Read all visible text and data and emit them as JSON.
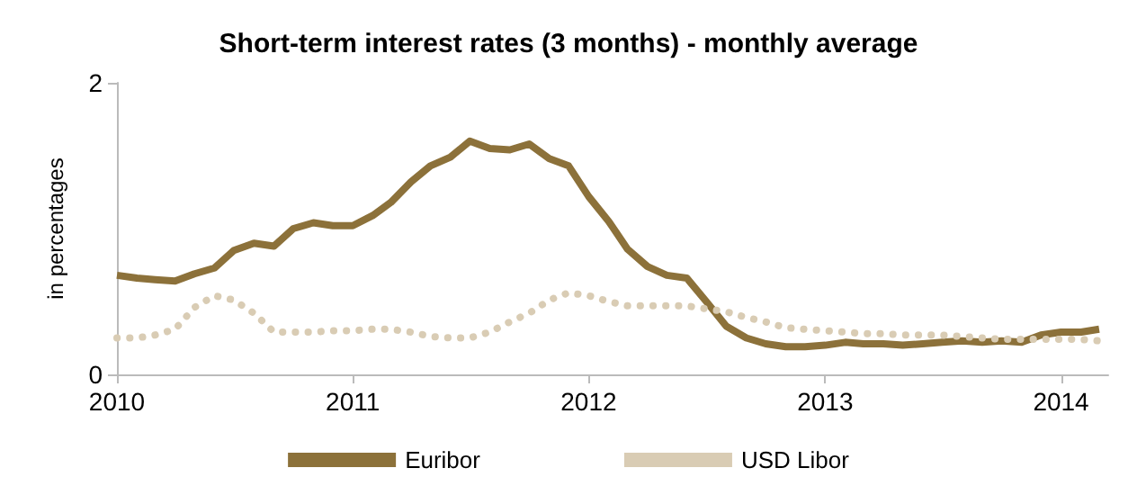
{
  "chart_data": {
    "type": "line",
    "title": "Short-term interest rates (3 months) - monthly average",
    "ylabel": "in percentages",
    "x": [
      "2010-01",
      "2010-02",
      "2010-03",
      "2010-04",
      "2010-05",
      "2010-06",
      "2010-07",
      "2010-08",
      "2010-09",
      "2010-10",
      "2010-11",
      "2010-12",
      "2011-01",
      "2011-02",
      "2011-03",
      "2011-04",
      "2011-05",
      "2011-06",
      "2011-07",
      "2011-08",
      "2011-09",
      "2011-10",
      "2011-11",
      "2011-12",
      "2012-01",
      "2012-02",
      "2012-03",
      "2012-04",
      "2012-05",
      "2012-06",
      "2012-07",
      "2012-08",
      "2012-09",
      "2012-10",
      "2012-11",
      "2012-12",
      "2013-01",
      "2013-02",
      "2013-03",
      "2013-04",
      "2013-05",
      "2013-06",
      "2013-07",
      "2013-08",
      "2013-09",
      "2013-10",
      "2013-11",
      "2013-12",
      "2014-01",
      "2014-02",
      "2014-03"
    ],
    "series": [
      {
        "name": "Euribor",
        "color": "#8c713a",
        "line_style": "solid",
        "values": [
          0.68,
          0.66,
          0.65,
          0.64,
          0.69,
          0.73,
          0.85,
          0.9,
          0.88,
          1.0,
          1.04,
          1.02,
          1.02,
          1.09,
          1.18,
          1.32,
          1.43,
          1.49,
          1.6,
          1.55,
          1.54,
          1.58,
          1.48,
          1.43,
          1.22,
          1.05,
          0.86,
          0.74,
          0.68,
          0.66,
          0.5,
          0.33,
          0.25,
          0.21,
          0.19,
          0.19,
          0.2,
          0.22,
          0.21,
          0.21,
          0.2,
          0.21,
          0.22,
          0.23,
          0.22,
          0.23,
          0.22,
          0.27,
          0.29,
          0.29,
          0.31
        ]
      },
      {
        "name": "USD Libor",
        "color": "#d9ccb4",
        "line_style": "dotted",
        "values": [
          0.25,
          0.25,
          0.27,
          0.31,
          0.46,
          0.54,
          0.51,
          0.42,
          0.29,
          0.29,
          0.29,
          0.3,
          0.3,
          0.31,
          0.31,
          0.29,
          0.26,
          0.25,
          0.25,
          0.29,
          0.36,
          0.42,
          0.51,
          0.56,
          0.54,
          0.5,
          0.47,
          0.47,
          0.47,
          0.47,
          0.45,
          0.43,
          0.39,
          0.36,
          0.32,
          0.31,
          0.3,
          0.29,
          0.28,
          0.28,
          0.27,
          0.27,
          0.27,
          0.26,
          0.25,
          0.24,
          0.24,
          0.24,
          0.24,
          0.24,
          0.23
        ]
      }
    ],
    "xlim": [
      "2010-01",
      "2014-03-15"
    ],
    "xticks": [
      {
        "value": "2010",
        "label": "2010"
      },
      {
        "value": "2011",
        "label": "2011"
      },
      {
        "value": "2012",
        "label": "2012"
      },
      {
        "value": "2013",
        "label": "2013"
      },
      {
        "value": "2014",
        "label": "2014"
      }
    ],
    "ylim": [
      0,
      2
    ],
    "yticks": [
      0,
      2
    ],
    "grid": false,
    "legend": "bottom",
    "marker": "none"
  }
}
